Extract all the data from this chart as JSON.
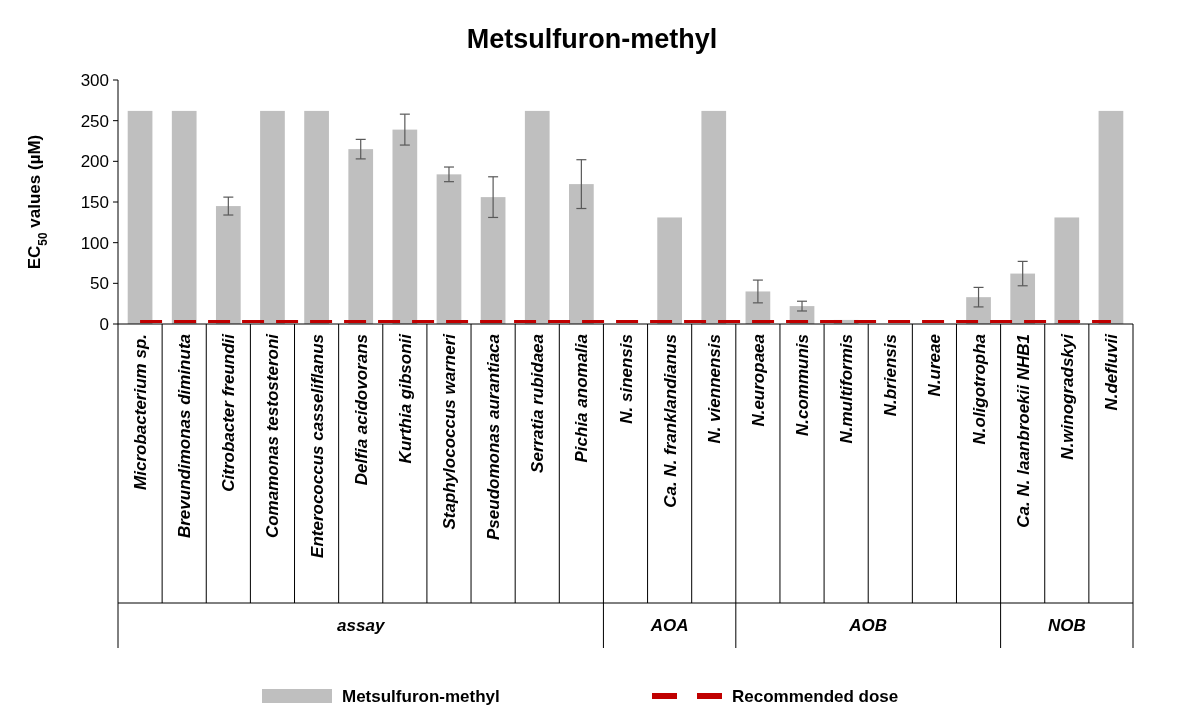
{
  "chart_data": {
    "type": "bar",
    "title": "Metsulfuron-methyl",
    "ylabel": "EC$_{50}$ values (µM)",
    "categories": [
      "Microbacterium sp.",
      "Brevundimonas diminuta",
      "Citrobacter freundii",
      "Comamonas testosteroni",
      "Enterococcus casseliflanus",
      "Delfia acidovorans",
      "Kurthia gibsonii",
      "Staphylococcus warneri",
      "Pseudomonas aurantiaca",
      "Serratia rubidaea",
      "Pichia anomalia",
      "N. sinensis",
      "Ca. N. franklandianus",
      "N. viennensis",
      "N.europaea",
      "N.communis",
      "N.multiformis",
      "N.briensis",
      "N.ureae",
      "N.oligotropha",
      "Ca. N.  laanbroekii NHB1",
      "N.winogradskyi",
      "N.defluvii"
    ],
    "series": [
      {
        "name": "Metsulfuron-methyl",
        "color": "#bfbfbf",
        "values": [
          262,
          262,
          145,
          262,
          262,
          215,
          239,
          184,
          156,
          262,
          172,
          null,
          131,
          262,
          40,
          22,
          5,
          null,
          null,
          33,
          62,
          131,
          262
        ],
        "errors": [
          null,
          null,
          11,
          null,
          null,
          12,
          19,
          9,
          25,
          null,
          30,
          null,
          null,
          null,
          14,
          6,
          null,
          null,
          null,
          12,
          15,
          null,
          null
        ]
      },
      {
        "name": "Recommended dose",
        "type": "line",
        "color": "#c00000",
        "line_style": "dashed",
        "marker": "none",
        "values": [
          3,
          3,
          3,
          3,
          3,
          3,
          3,
          3,
          3,
          3,
          3,
          3,
          3,
          3,
          3,
          3,
          3,
          3,
          3,
          3,
          3,
          3,
          3
        ]
      }
    ],
    "annotations": [
      "assay",
      "AOA",
      "AOB",
      "NOB"
    ],
    "ylim": [
      0,
      300
    ],
    "yticks": [
      0,
      50,
      100,
      150,
      200,
      250,
      300
    ],
    "legend": "bottom"
  }
}
